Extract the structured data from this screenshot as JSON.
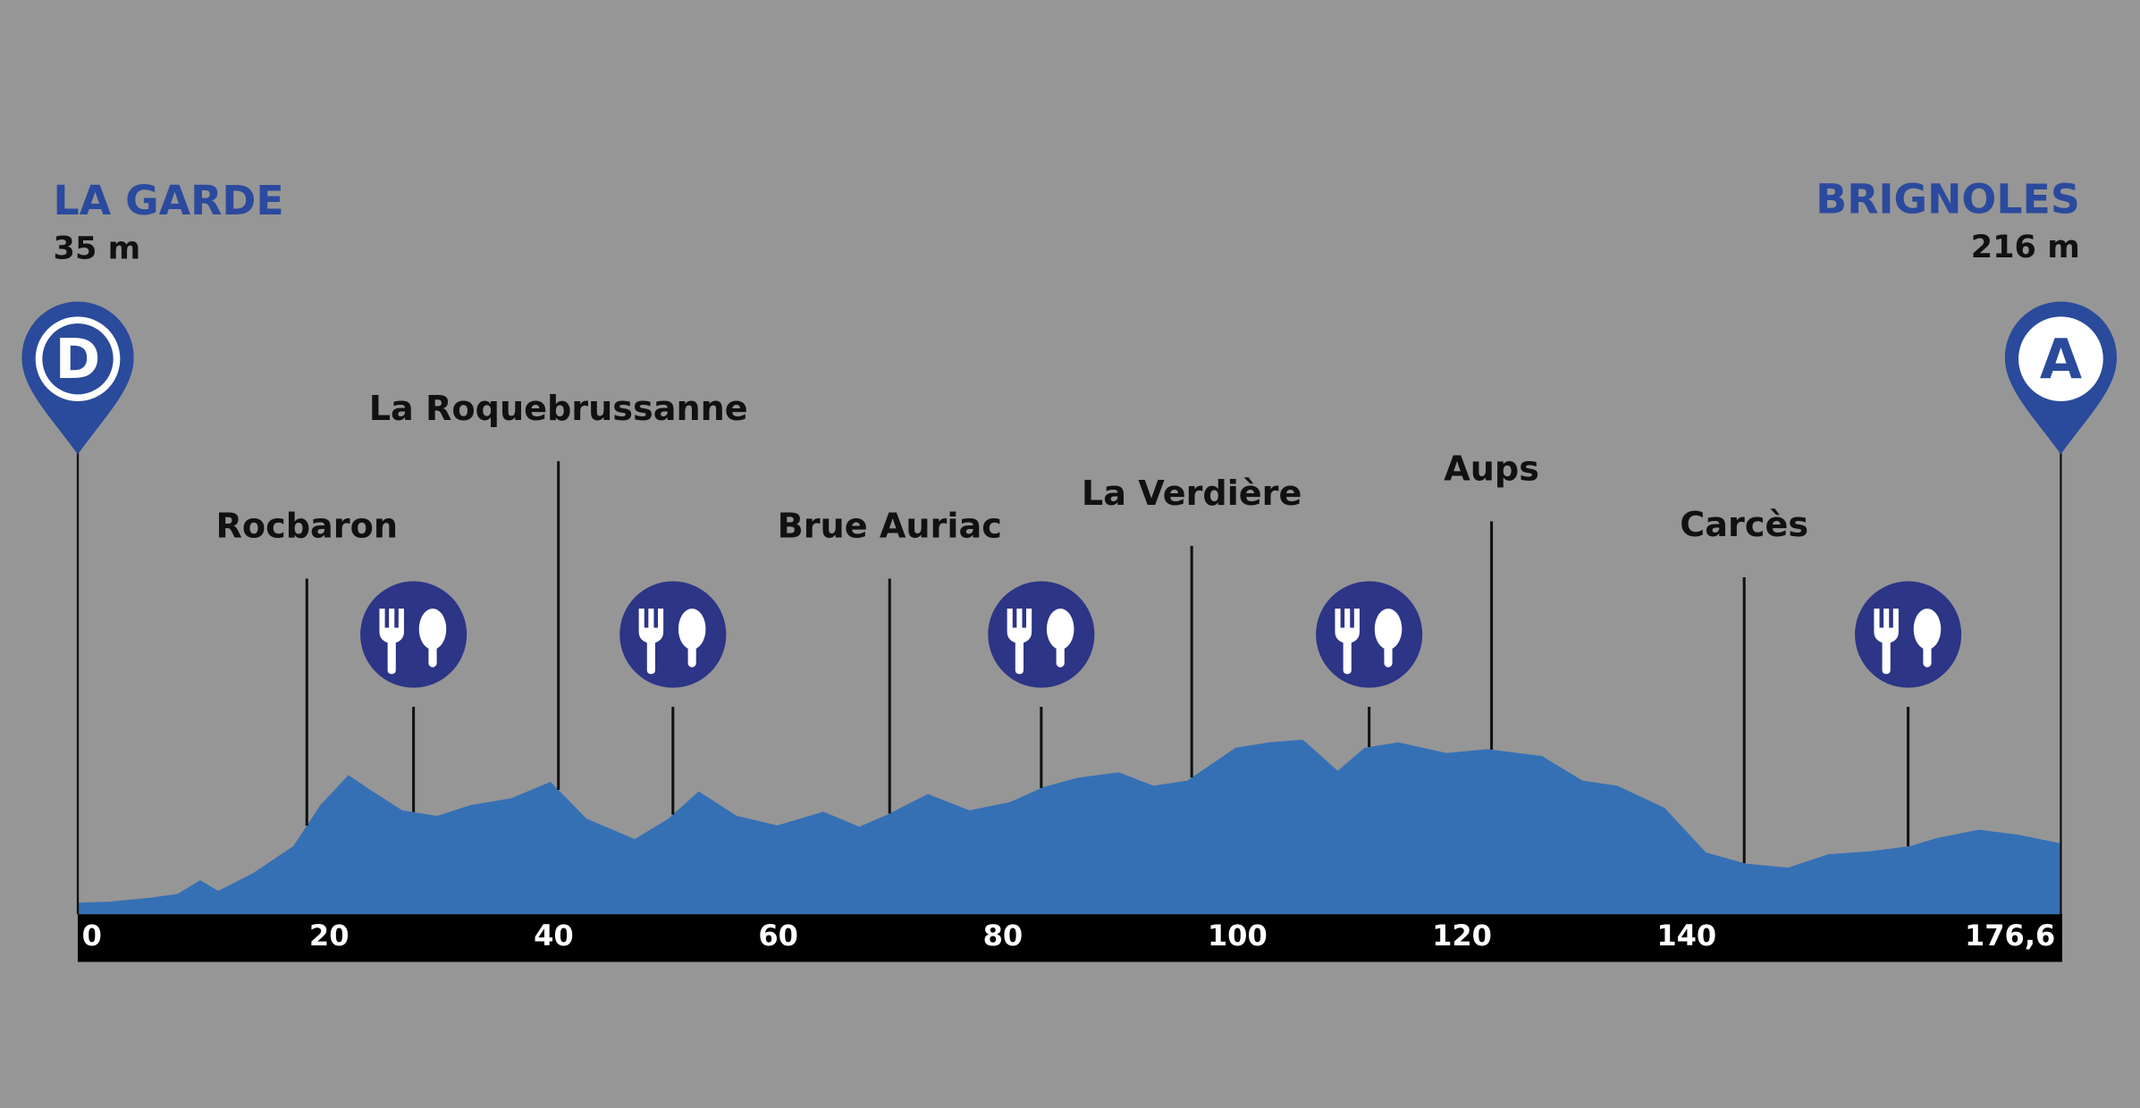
{
  "chart_data": {
    "type": "area",
    "start": {
      "name": "LA GARDE",
      "elevation": "35 m",
      "marker": "D"
    },
    "finish": {
      "name": "BRIGNOLES",
      "elevation": "216 m",
      "marker": "A"
    },
    "color": "#3570b5",
    "xlim": [
      0,
      176.6
    ],
    "ylim": [
      0,
      800
    ],
    "xticks": [
      0,
      20,
      40,
      60,
      80,
      100,
      120,
      140,
      {
        "value": 176.6,
        "label": "176,6"
      }
    ],
    "x": [
      0,
      2.8,
      6.4,
      8.9,
      10.9,
      12.5,
      15.6,
      19.2,
      21.6,
      24.1,
      25.9,
      28.9,
      32,
      35,
      38.6,
      42.1,
      45.3,
      49.6,
      52.6,
      55.3,
      58.7,
      62.3,
      66.4,
      69.6,
      72.1,
      75.7,
      79.4,
      83,
      86,
      89.1,
      92.7,
      95.8,
      98.8,
      103.1,
      106.1,
      109.1,
      112.2,
      114.6,
      117.6,
      121.9,
      125.5,
      130.4,
      134,
      137.1,
      141.3,
      145,
      148.6,
      152.3,
      155.9,
      159.6,
      163.2,
      165.6,
      169.3,
      172.9,
      176.6
    ],
    "values": [
      35,
      38,
      50,
      62,
      104,
      71,
      125,
      208,
      333,
      425,
      383,
      317,
      300,
      333,
      354,
      404,
      292,
      229,
      292,
      375,
      300,
      271,
      313,
      267,
      304,
      367,
      317,
      342,
      388,
      417,
      433,
      392,
      408,
      508,
      525,
      533,
      438,
      508,
      525,
      492,
      504,
      483,
      408,
      392,
      325,
      188,
      154,
      142,
      183,
      192,
      208,
      233,
      258,
      242,
      216
    ],
    "towns": [
      {
        "name": "Rocbaron",
        "km": 20.4
      },
      {
        "name": "La Roquebrussanne",
        "km": 42.8
      },
      {
        "name": "Brue Auriac",
        "km": 72.3
      },
      {
        "name": "La Verdière",
        "km": 99.2
      },
      {
        "name": "Aups",
        "km": 125.9
      },
      {
        "name": "Carcès",
        "km": 148.4
      }
    ],
    "feed_stations": [
      29.9,
      53,
      85.8,
      115,
      163
    ]
  }
}
